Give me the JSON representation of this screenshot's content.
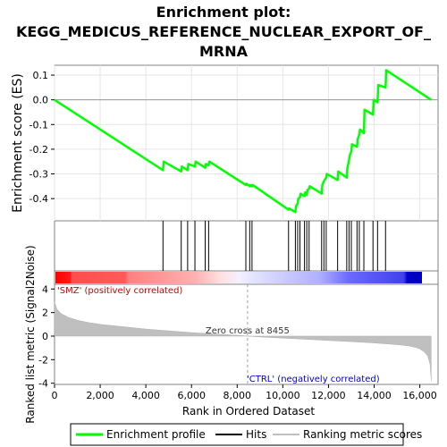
{
  "chart_data": {
    "type": "line",
    "title_line1": "Enrichment plot:",
    "title_line2": "KEGG_MEDICUS_REFERENCE_NUCLEAR_EXPORT_OF_",
    "title_line3": "MRNA",
    "es_ylabel": "Enrichment score (ES)",
    "metric_ylabel": "Ranked list metric (Signal2Noise)",
    "xlabel": "Rank in Ordered Dataset",
    "xlim": [
      0,
      16800
    ],
    "es_ylim": [
      -0.49,
      0.14
    ],
    "metric_ylim": [
      -4.1,
      4.4
    ],
    "x_ticks": [
      0,
      2000,
      4000,
      6000,
      8000,
      10000,
      12000,
      14000,
      16000
    ],
    "x_tick_labels": [
      "0",
      "2,000",
      "4,000",
      "6,000",
      "8,000",
      "10,000",
      "12,000",
      "14,000",
      "16,000"
    ],
    "es_ticks": [
      0.1,
      0.0,
      -0.1,
      -0.2,
      -0.3,
      -0.4
    ],
    "es_tick_labels": [
      "0.1",
      "0.0",
      "-0.1",
      "-0.2",
      "-0.3",
      "-0.4"
    ],
    "metric_ticks": [
      4,
      2,
      0,
      -2,
      -4
    ],
    "metric_tick_labels": [
      "4",
      "2",
      "0",
      "-2",
      "-4"
    ],
    "series": [
      {
        "name": "Enrichment profile",
        "color": "#00ff00",
        "x": [
          0,
          4750,
          4780,
          5550,
          5580,
          5830,
          5860,
          6150,
          6180,
          6600,
          6630,
          6750,
          6780,
          8380,
          8410,
          8550,
          8580,
          8650,
          8680,
          10250,
          10280,
          10550,
          10580,
          10650,
          10680,
          10750,
          10780,
          10950,
          10980,
          11050,
          11080,
          11150,
          11180,
          11700,
          11730,
          11800,
          11830,
          11900,
          11930,
          12400,
          12430,
          12800,
          12830,
          12900,
          12930,
          13000,
          13030,
          13250,
          13280,
          13350,
          13380,
          13550,
          13580,
          13950,
          13980,
          14150,
          14180,
          14500,
          14530,
          16500
        ],
        "y": [
          0.0,
          -0.285,
          -0.25,
          -0.29,
          -0.27,
          -0.285,
          -0.26,
          -0.27,
          -0.25,
          -0.275,
          -0.26,
          -0.265,
          -0.25,
          -0.345,
          -0.34,
          -0.35,
          -0.345,
          -0.35,
          -0.345,
          -0.445,
          -0.44,
          -0.455,
          -0.43,
          -0.42,
          -0.4,
          -0.395,
          -0.38,
          -0.39,
          -0.375,
          -0.385,
          -0.365,
          -0.36,
          -0.35,
          -0.38,
          -0.345,
          -0.33,
          -0.325,
          -0.315,
          -0.3,
          -0.325,
          -0.29,
          -0.315,
          -0.275,
          -0.245,
          -0.225,
          -0.21,
          -0.18,
          -0.19,
          -0.16,
          -0.14,
          -0.12,
          -0.135,
          -0.04,
          -0.06,
          0.0,
          -0.01,
          0.06,
          0.05,
          0.12,
          0.0
        ]
      }
    ],
    "hits": [
      4750,
      5550,
      5830,
      6150,
      6600,
      6750,
      8380,
      8550,
      8650,
      10250,
      10550,
      10650,
      10750,
      10950,
      11050,
      11150,
      11700,
      11800,
      11900,
      12400,
      12800,
      12900,
      13000,
      13250,
      13350,
      13550,
      13950,
      14150,
      14500
    ],
    "metric_curve": {
      "x": [
        0,
        100,
        300,
        600,
        1000,
        1500,
        2000,
        3000,
        4000,
        5000,
        6000,
        7000,
        8000,
        8465,
        9000,
        10000,
        11000,
        12000,
        13000,
        14000,
        15000,
        15500,
        15800,
        16000,
        16200,
        16350,
        16450,
        16500
      ],
      "y": [
        2.9,
        2.3,
        1.9,
        1.6,
        1.35,
        1.15,
        1.0,
        0.8,
        0.6,
        0.45,
        0.3,
        0.18,
        0.07,
        0.0,
        -0.07,
        -0.17,
        -0.27,
        -0.37,
        -0.47,
        -0.58,
        -0.72,
        -0.83,
        -0.95,
        -1.08,
        -1.35,
        -1.7,
        -2.4,
        -3.8
      ]
    },
    "zero_cross_label": "Zero cross at 8455",
    "zero_cross_x": 8455,
    "pos_label": "'SMZ' (positively correlated)",
    "neg_label": "'CTRL' (negatively correlated)",
    "legend": [
      {
        "label": "Enrichment profile",
        "color": "#00ff00"
      },
      {
        "label": "Hits",
        "color": "#000000"
      },
      {
        "label": "Ranking metric scores",
        "color": "#c0c0c0"
      }
    ]
  }
}
